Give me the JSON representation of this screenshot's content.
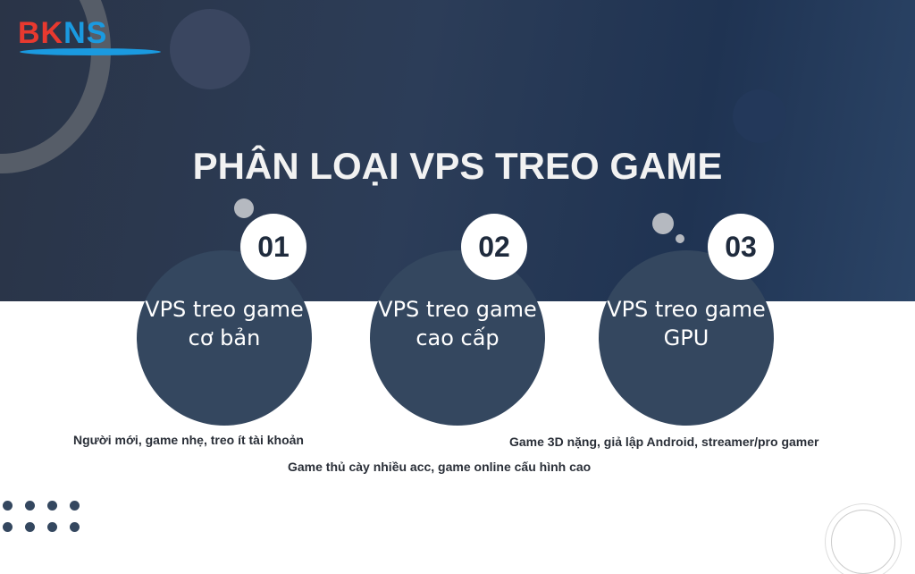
{
  "logo": {
    "text_red": "BK",
    "text_blue": "NS"
  },
  "title": "PHÂN LOẠI VPS TREO GAME",
  "items": [
    {
      "number": "01",
      "name_line1": "VPS treo game",
      "name_line2": "cơ bản",
      "description": "Người mới, game nhẹ, treo ít tài khoản"
    },
    {
      "number": "02",
      "name_line1": "VPS treo game",
      "name_line2": "cao cấp",
      "description": "Game thủ cày nhiều acc, game online cấu hình cao"
    },
    {
      "number": "03",
      "name_line1": "VPS treo game",
      "name_line2": "GPU",
      "description": "Game 3D nặng, giả lập Android, streamer/pro gamer"
    }
  ],
  "colors": {
    "dark_band": "#2c3d58",
    "circle": "#34475f",
    "logo_red": "#e8392f",
    "logo_blue": "#1a9ae0"
  }
}
